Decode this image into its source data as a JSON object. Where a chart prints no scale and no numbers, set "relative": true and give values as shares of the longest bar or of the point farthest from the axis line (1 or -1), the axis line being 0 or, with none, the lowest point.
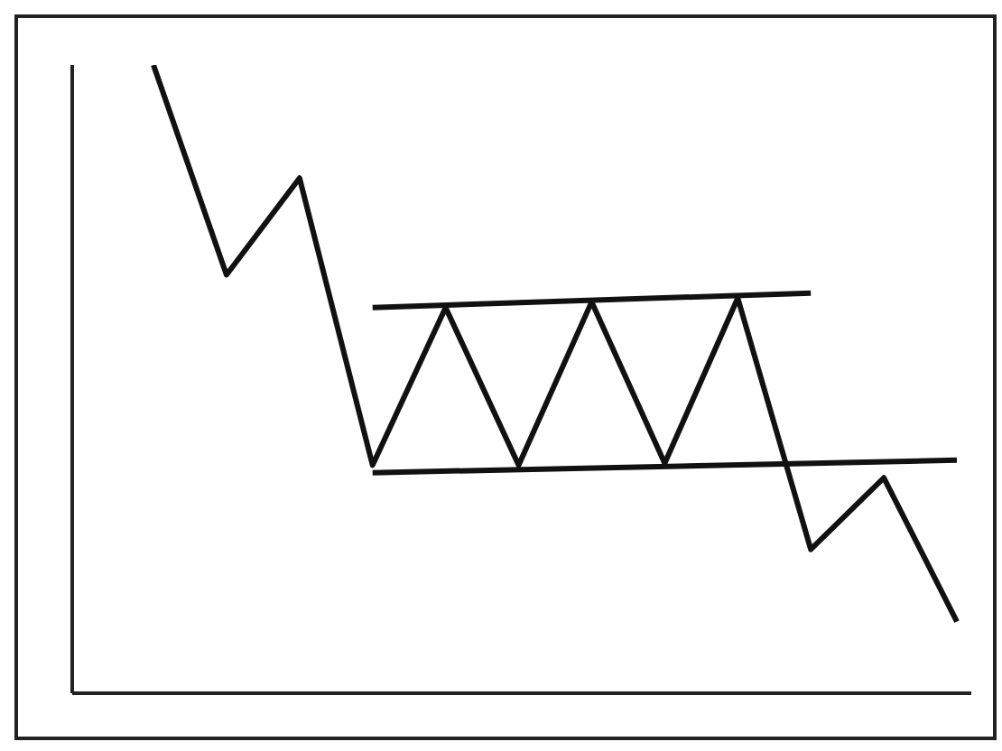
{
  "chart_data": {
    "type": "line",
    "relative": true,
    "categories": [
      null,
      null,
      null,
      null,
      null,
      null,
      null,
      null,
      null,
      null,
      null,
      null
    ],
    "grid": false,
    "marker": "none",
    "line_style": "solid",
    "series": [
      {
        "color": "#111111",
        "values": [
          1.0,
          0.666,
          0.82,
          0.363,
          0.614,
          0.363,
          0.623,
          0.366,
          0.629,
          0.229,
          0.343,
          0.114
        ]
      },
      {
        "color": "#111111",
        "values": [
          null,
          null,
          null,
          0.614,
          null,
          null,
          null,
          null,
          null,
          0.637,
          null,
          null
        ]
      },
      {
        "color": "#111111",
        "values": [
          null,
          null,
          null,
          0.351,
          null,
          null,
          null,
          null,
          null,
          null,
          null,
          0.371
        ]
      }
    ]
  }
}
